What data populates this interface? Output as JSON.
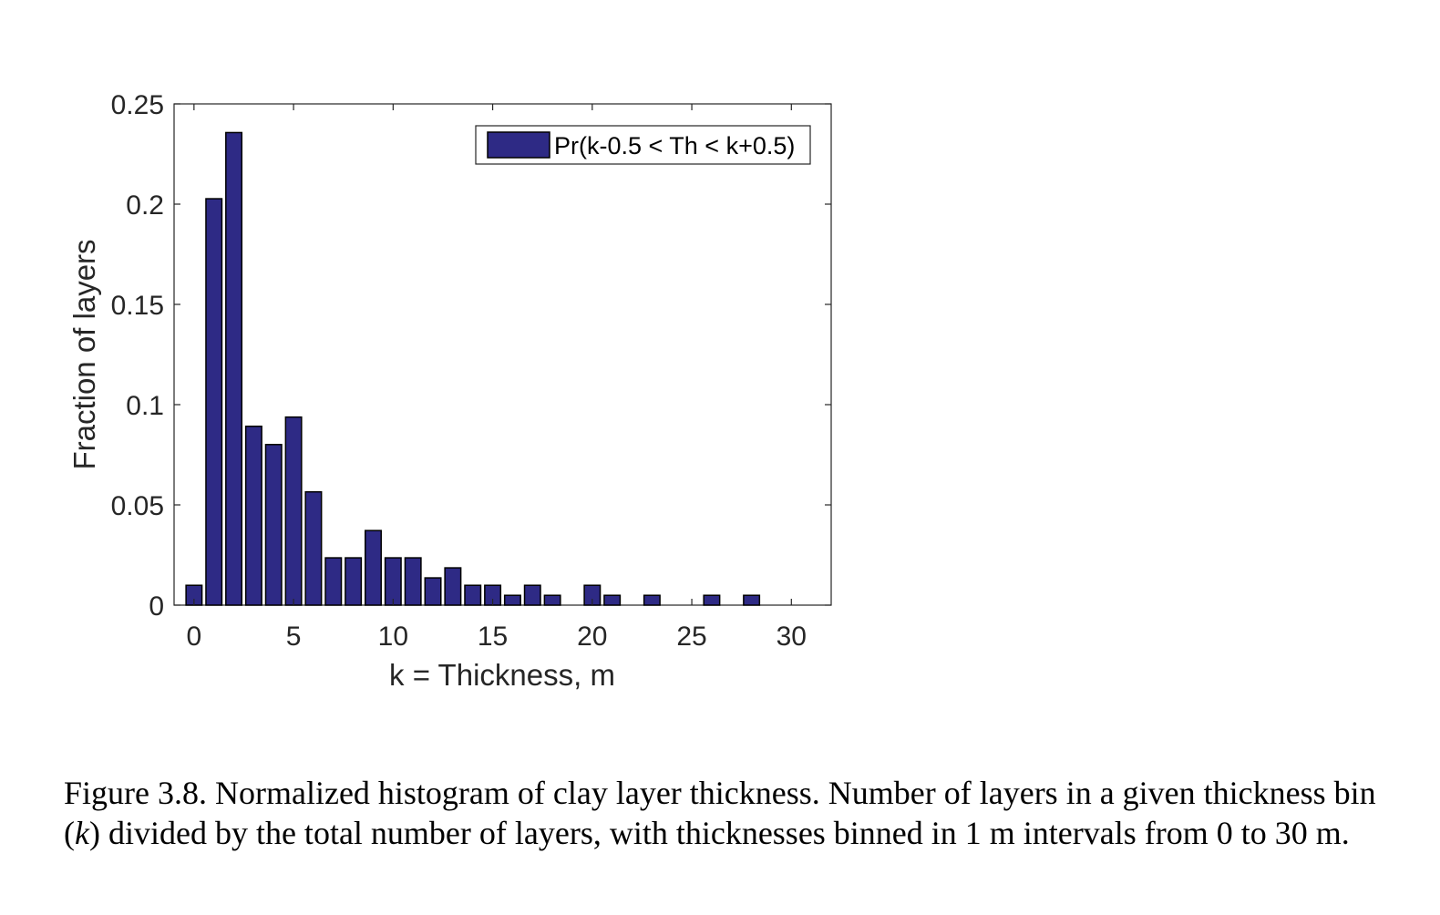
{
  "chart_data": {
    "type": "bar",
    "xlabel": "k = Thickness, m",
    "ylabel": "Fraction of layers",
    "xlim": [
      -1,
      32
    ],
    "ylim": [
      0,
      0.25
    ],
    "xticks": [
      0,
      5,
      10,
      15,
      20,
      25,
      30
    ],
    "yticks": [
      0,
      0.05,
      0.1,
      0.15,
      0.2,
      0.25
    ],
    "ytick_labels": [
      "0",
      "0.05",
      "0.1",
      "0.15",
      "0.2",
      "0.25"
    ],
    "grid": false,
    "legend_position": "top-right",
    "series": [
      {
        "name": "Pr(k-0.5 < Th < k+0.5)",
        "color": "#2e2a85",
        "x": [
          0,
          1,
          2,
          3,
          4,
          5,
          6,
          7,
          8,
          9,
          10,
          11,
          12,
          13,
          14,
          15,
          16,
          17,
          18,
          19,
          20,
          21,
          22,
          23,
          24,
          25,
          26,
          27,
          28
        ],
        "values": [
          0.0099,
          0.2027,
          0.2357,
          0.0892,
          0.0801,
          0.0938,
          0.0565,
          0.0236,
          0.0236,
          0.0372,
          0.0236,
          0.0236,
          0.0136,
          0.0186,
          0.0099,
          0.0099,
          0.0049,
          0.0099,
          0.0049,
          0.0,
          0.0099,
          0.0049,
          0.0,
          0.0049,
          0.0,
          0.0,
          0.0049,
          0.0,
          0.0049
        ]
      }
    ]
  },
  "caption": {
    "prefix": "Figure 3.8. Normalized histogram of clay layer thickness. Number of layers in a given thickness bin (",
    "var": "k",
    "suffix": ") divided by the total number of layers, with thicknesses binned in 1 m intervals from 0 to 30 m."
  }
}
